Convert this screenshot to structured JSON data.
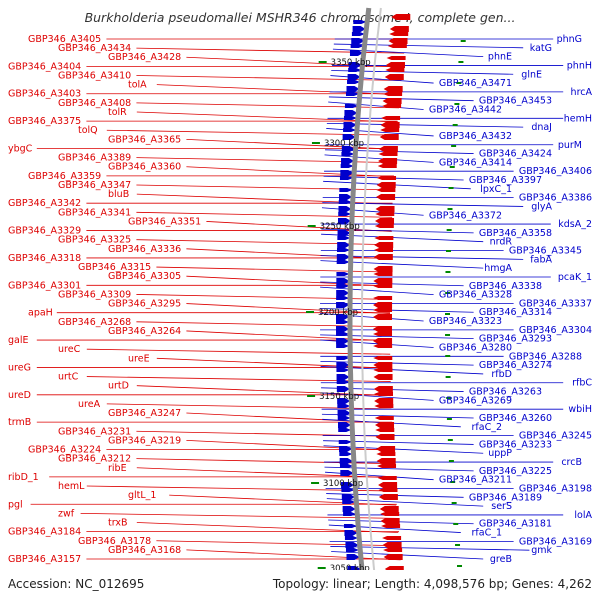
{
  "title": "Burkholderia pseudomallei MSHR346 chromosome I, complete gen...",
  "footer": {
    "accession": "Accession: NC_012695",
    "summary": "Topology: linear; Length: 4,098,576 bp; Genes: 4,262"
  },
  "colors": {
    "reverse_strand": "#dd0000",
    "forward_strand": "#0000cc",
    "backbone": "#888888",
    "tick": "#008800"
  },
  "ticks": [
    "3350 kbp",
    "3300 kbp",
    "3250 kbp",
    "3200 kbp",
    "3150 kbp",
    "3100 kbp",
    "3050 kbp"
  ],
  "left_labels": [
    "GBP346_A3405",
    "GBP346_A3434",
    "GBP346_A3428",
    "GBP346_A3404",
    "GBP346_A3410",
    "tolA",
    "GBP346_A3403",
    "GBP346_A3408",
    "tolR",
    "GBP346_A3375",
    "tolQ",
    "GBP346_A3365",
    "ybgC",
    "GBP346_A3389",
    "GBP346_A3360",
    "GBP346_A3359",
    "GBP346_A3347",
    "bluB",
    "GBP346_A3342",
    "GBP346_A3341",
    "GBP346_A3351",
    "GBP346_A3329",
    "GBP346_A3325",
    "GBP346_A3336",
    "GBP346_A3318",
    "GBP346_A3315",
    "GBP346_A3305",
    "GBP346_A3301",
    "GBP346_A3309",
    "GBP346_A3295",
    "apaH",
    "GBP346_A3268",
    "GBP346_A3264",
    "galE",
    "ureC",
    "ureE",
    "ureG",
    "urtC",
    "urtD",
    "ureD",
    "ureA",
    "GBP346_A3247",
    "trmB",
    "GBP346_A3231",
    "GBP346_A3219",
    "GBP346_A3224",
    "GBP346_A3212",
    "ribE",
    "ribD_1",
    "hemL",
    "gltL_1",
    "pgl",
    "zwf",
    "trxB",
    "GBP346_A3184",
    "GBP346_A3178",
    "GBP346_A3168",
    "GBP346_A3157"
  ],
  "right_labels": [
    "phnG",
    "katG",
    "phnE",
    "phnH",
    "glnE",
    "GBP346_A3471",
    "hrcA",
    "GBP346_A3453",
    "GBP346_A3442",
    "hemH",
    "dnaJ",
    "GBP346_A3432",
    "purM",
    "GBP346_A3424",
    "GBP346_A3414",
    "GBP346_A3406",
    "GBP346_A3397",
    "lpxC_1",
    "GBP346_A3386",
    "glyA",
    "GBP346_A3372",
    "kdsA_2",
    "GBP346_A3358",
    "nrdR",
    "GBP346_A3345",
    "fabA",
    "hmgA",
    "pcaK_1",
    "GBP346_A3338",
    "GBP346_A3328",
    "GBP346_A3337",
    "GBP346_A3314",
    "GBP346_A3323",
    "GBP346_A3304",
    "GBP346_A3293",
    "GBP346_A3280",
    "GBP346_A3288",
    "GBP346_A3274",
    "rfbD",
    "rfbC",
    "GBP346_A3263",
    "GBP346_A3269",
    "wbiH",
    "GBP346_A3260",
    "rfaC_2",
    "GBP346_A3245",
    "GBP346_A3233",
    "uppP",
    "crcB",
    "GBP346_A3225",
    "GBP346_A3211",
    "GBP346_A3198",
    "GBP346_A3189",
    "serS",
    "lolA",
    "GBP346_A3181",
    "rfaC_1",
    "GBP346_A3169",
    "gmk",
    "greB"
  ]
}
